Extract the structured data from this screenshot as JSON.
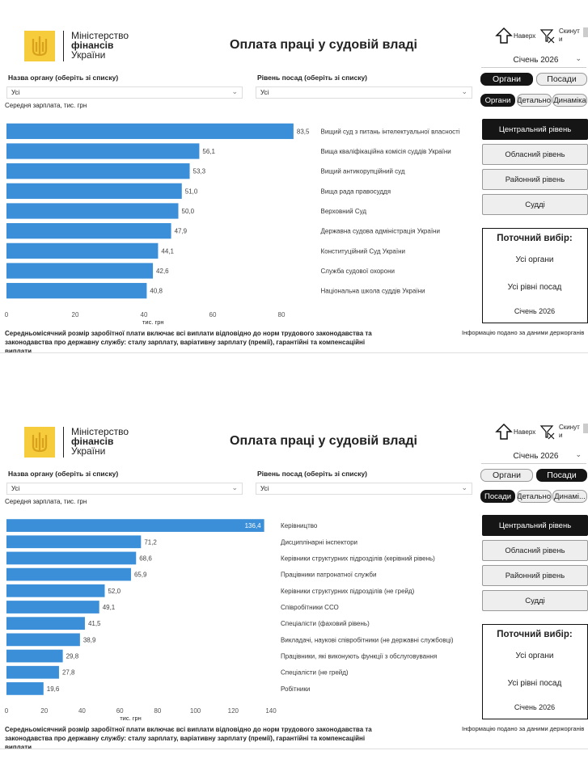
{
  "panels": [
    {
      "logo": [
        "Міністерство",
        "фінансів",
        "України"
      ],
      "title": "Оплата праці у судовій владі",
      "nav": [
        "Наверх",
        "Скинути"
      ],
      "period": "Січень 2026",
      "filters": [
        {
          "label": "Назва органу (оберіть зі списку)",
          "value": "Усі"
        },
        {
          "label": "Рівень посад (оберіть зі списку)",
          "value": "Усі"
        }
      ],
      "view_toggle": {
        "options": [
          "Органи",
          "Посади"
        ],
        "selected": 0
      },
      "sub_toggle": {
        "options": [
          "Органи",
          "Детально",
          "Динаміка"
        ],
        "selected": 0
      },
      "levels": {
        "options": [
          "Центральний рівень",
          "Обласний рівень",
          "Районний рівень",
          "Судді"
        ],
        "selected": 0
      },
      "current_selection": {
        "title": "Поточний вибір:",
        "items": [
          "Усі органи",
          "Усі рівні посад",
          "Січень 2026"
        ]
      },
      "footnote": "Середньомісячний розмір заробітної плати включає всі виплати відповідно до норм трудового законодавства та законодавства про державну службу: сталу зарплату, варіативну зарплату (премії), гарантійні та компенсаційні виплати",
      "source": "Інформацію подано за даними держорганів"
    },
    {
      "logo": [
        "Міністерство",
        "фінансів",
        "України"
      ],
      "title": "Оплата праці у судовій владі",
      "nav": [
        "Наверх",
        "Скинути"
      ],
      "period": "Січень 2026",
      "filters": [
        {
          "label": "Назва органу (оберіть зі списку)",
          "value": "Усі"
        },
        {
          "label": "Рівень посад (оберіть зі списку)",
          "value": "Усі"
        }
      ],
      "view_toggle": {
        "options": [
          "Органи",
          "Посади"
        ],
        "selected": 1
      },
      "sub_toggle": {
        "options": [
          "Посади",
          "Детально",
          "Динамі..."
        ],
        "selected": 0
      },
      "levels": {
        "options": [
          "Центральний рівень",
          "Обласний рівень",
          "Районний рівень",
          "Судді"
        ],
        "selected": 0
      },
      "current_selection": {
        "title": "Поточний вибір:",
        "items": [
          "Усі органи",
          "Усі рівні посад",
          "Січень 2026"
        ]
      },
      "footnote": "Середньомісячний розмір заробітної плати включає всі виплати відповідно до норм трудового законодавства та законодавства про державну службу: сталу зарплату, варіативну зарплату (премії), гарантійні та компенсаційні виплати",
      "source": "Інформацію подано за даними держорганів"
    }
  ],
  "chart_data": [
    {
      "type": "hbar",
      "subtitle": "Середня зарплата, тис. грн",
      "x_label": "тис. грн",
      "color": "#3b8fd9",
      "categories": [
        "Вищий суд з питань інтелектуальної власності",
        "Вища кваліфікаційна комісія суддів України",
        "Вищий антикорупційний суд",
        "Вища рада правосуддя",
        "Верховний Суд",
        "Державна судова адміністрація України",
        "Конституційний Суд України",
        "Служба судової охорони",
        "Національна школа суддів України"
      ],
      "values": [
        83.5,
        56.1,
        53.3,
        51.0,
        50.0,
        47.9,
        44.1,
        42.6,
        40.8
      ],
      "value_labels": [
        "83,5",
        "56,1",
        "53,3",
        "51,0",
        "50,0",
        "47,9",
        "44,1",
        "42,6",
        "40,8"
      ],
      "xlim": [
        0,
        90
      ],
      "xticks": [
        0,
        20,
        40,
        60,
        80
      ]
    },
    {
      "type": "hbar",
      "subtitle": "Середня зарплата, тис. грн",
      "x_label": "тис. грн",
      "color": "#3b8fd9",
      "categories": [
        "Керівництво",
        "Дисциплінарні інспектори",
        "Керівники структурних підрозділів (керівний рівень)",
        "Працівники патронатної служби",
        "Керівники структурних підрозділів (не грейд)",
        "Співробітники ССО",
        "Спеціалісти (фаховий рівень)",
        "Викладачі, наукові співробітники (не державні службовці)",
        "Працівники, які виконують функції з обслуговування",
        "Спеціалісти (не грейд)",
        "Робітники"
      ],
      "values": [
        136.4,
        71.2,
        68.6,
        65.9,
        52.0,
        49.1,
        41.5,
        38.9,
        29.8,
        27.8,
        19.6
      ],
      "value_labels": [
        "136,4",
        "71,2",
        "68,6",
        "65,9",
        "52,0",
        "49,1",
        "41,5",
        "38,9",
        "29,8",
        "27,8",
        "19,6"
      ],
      "xlim": [
        0,
        140
      ],
      "xticks": [
        0,
        20,
        40,
        60,
        80,
        100,
        120,
        140
      ]
    }
  ]
}
